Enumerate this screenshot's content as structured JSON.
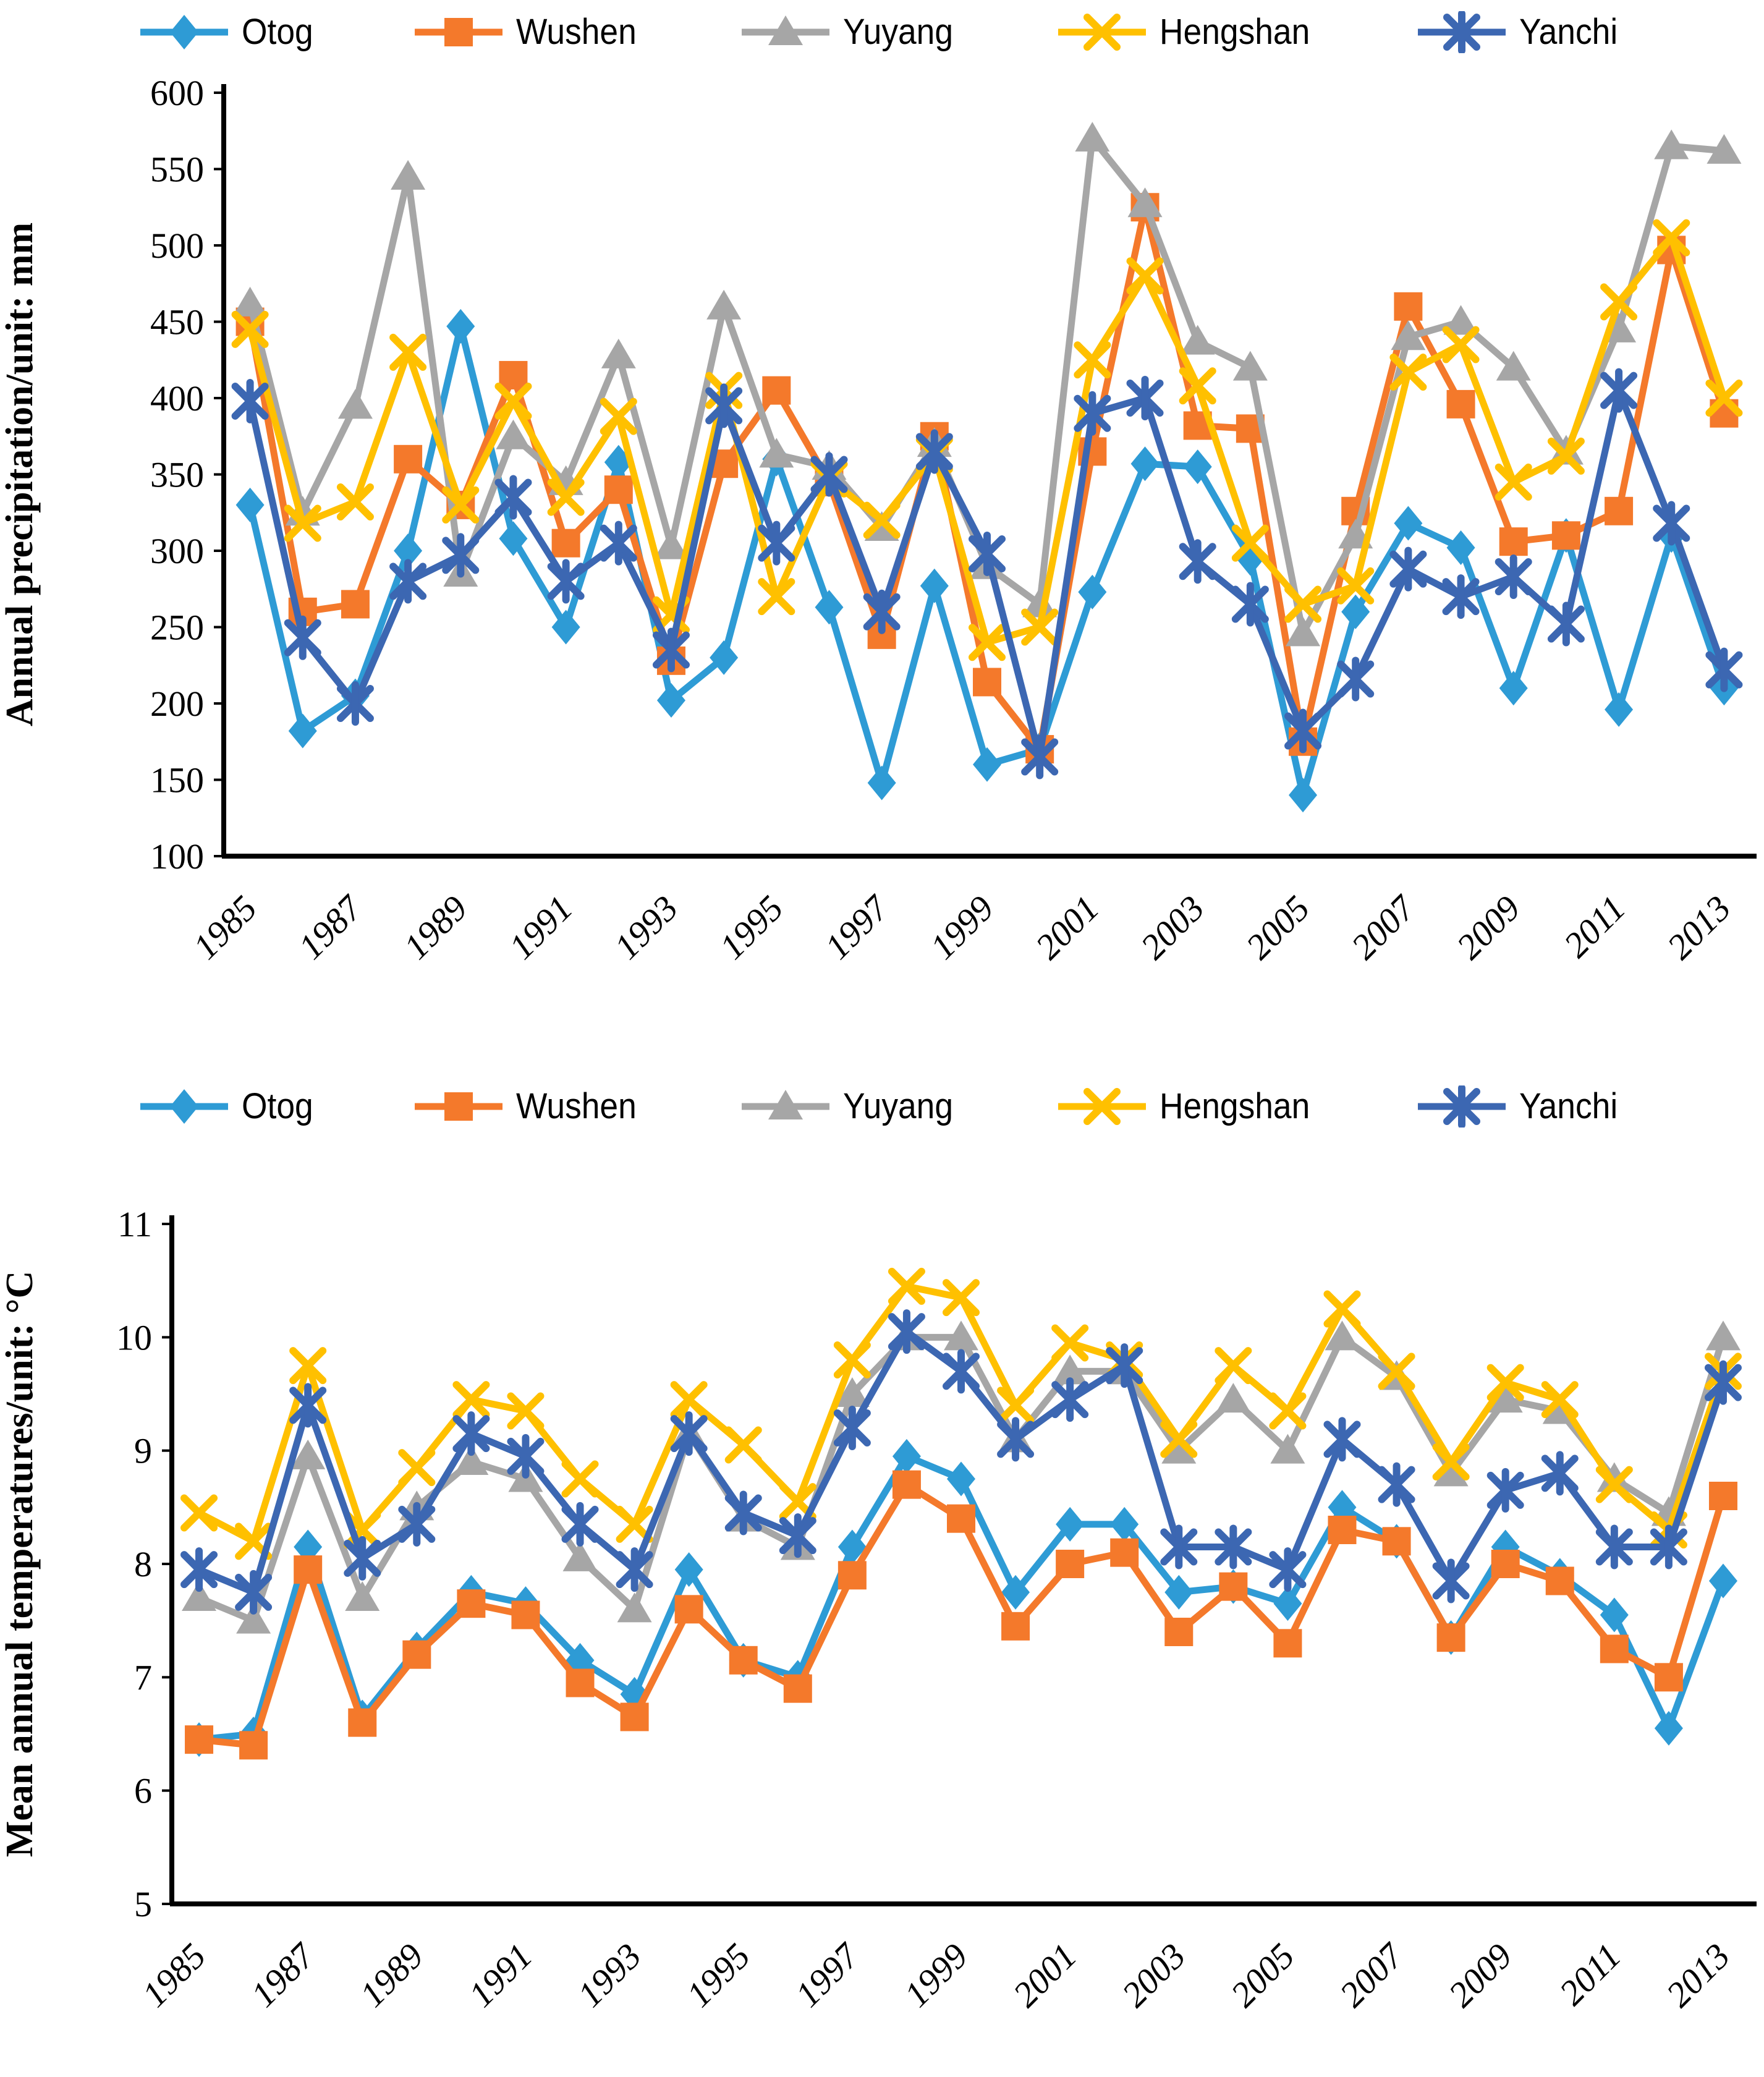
{
  "page": {
    "background": "#ffffff",
    "axis_color": "#000000"
  },
  "chart_data": [
    {
      "type": "line",
      "title": "",
      "ylabel": "Annual precipitation/unit: mm",
      "xlabel": "",
      "ylim": [
        100,
        600
      ],
      "ytick_step": 50,
      "xtick_every": 2,
      "grid": false,
      "legend_position": "top",
      "x": [
        1985,
        1986,
        1987,
        1988,
        1989,
        1990,
        1991,
        1992,
        1993,
        1994,
        1995,
        1996,
        1997,
        1998,
        1999,
        2000,
        2001,
        2002,
        2003,
        2004,
        2005,
        2006,
        2007,
        2008,
        2009,
        2010,
        2011,
        2012,
        2013
      ],
      "series": [
        {
          "name": "Otog",
          "color": "#2E9BD5",
          "marker": "diamond",
          "values": [
            330,
            182,
            205,
            300,
            447,
            308,
            250,
            358,
            202,
            230,
            360,
            263,
            148,
            277,
            160,
            170,
            273,
            357,
            355,
            295,
            140,
            260,
            318,
            302,
            210,
            310,
            196,
            310,
            210
          ]
        },
        {
          "name": "Wushen",
          "color": "#F4792B",
          "marker": "square",
          "values": [
            450,
            260,
            265,
            360,
            330,
            415,
            305,
            340,
            228,
            357,
            405,
            345,
            245,
            375,
            214,
            170,
            365,
            525,
            382,
            380,
            175,
            326,
            460,
            396,
            306,
            310,
            326,
            497,
            390
          ]
        },
        {
          "name": "Yuyang",
          "color": "#A6A6A6",
          "marker": "triangle",
          "values": [
            462,
            325,
            395,
            545,
            285,
            375,
            345,
            428,
            303,
            460,
            363,
            355,
            315,
            370,
            290,
            265,
            570,
            527,
            437,
            420,
            246,
            310,
            440,
            450,
            420,
            365,
            445,
            565,
            562
          ]
        },
        {
          "name": "Hengshan",
          "color": "#FFC000",
          "marker": "x",
          "values": [
            445,
            318,
            332,
            430,
            330,
            398,
            335,
            388,
            258,
            405,
            270,
            347,
            320,
            363,
            240,
            250,
            425,
            480,
            408,
            305,
            265,
            277,
            417,
            435,
            345,
            362,
            463,
            505,
            400
          ]
        },
        {
          "name": "Yanchi",
          "color": "#3C67B2",
          "marker": "asterisk",
          "values": [
            398,
            243,
            200,
            280,
            297,
            335,
            280,
            305,
            235,
            395,
            305,
            350,
            260,
            365,
            298,
            165,
            390,
            400,
            293,
            265,
            182,
            216,
            288,
            270,
            283,
            252,
            405,
            318,
            222
          ]
        }
      ]
    },
    {
      "type": "line",
      "title": "",
      "ylabel": "Mean annual temperatures/unit: °C",
      "xlabel": "",
      "ylim": [
        5,
        11
      ],
      "ytick_step": 1,
      "xtick_every": 2,
      "grid": false,
      "legend_position": "top",
      "x": [
        1985,
        1986,
        1987,
        1988,
        1989,
        1990,
        1991,
        1992,
        1993,
        1994,
        1995,
        1996,
        1997,
        1998,
        1999,
        2000,
        2001,
        2002,
        2003,
        2004,
        2005,
        2006,
        2007,
        2008,
        2009,
        2010,
        2011,
        2012,
        2013
      ],
      "series": [
        {
          "name": "Otog",
          "color": "#2E9BD5",
          "marker": "diamond",
          "values": [
            6.45,
            6.5,
            8.15,
            6.65,
            7.25,
            7.75,
            7.65,
            7.15,
            6.85,
            7.95,
            7.15,
            7.0,
            8.15,
            8.95,
            8.75,
            7.75,
            8.35,
            8.35,
            7.75,
            7.8,
            7.65,
            8.5,
            8.2,
            7.35,
            8.15,
            7.9,
            7.55,
            6.55,
            7.85
          ]
        },
        {
          "name": "Wushen",
          "color": "#F4792B",
          "marker": "square",
          "values": [
            6.45,
            6.4,
            7.95,
            6.6,
            7.2,
            7.65,
            7.55,
            6.95,
            6.65,
            7.6,
            7.15,
            6.9,
            7.9,
            8.7,
            8.4,
            7.45,
            8.0,
            8.1,
            7.4,
            7.8,
            7.3,
            8.3,
            8.2,
            7.35,
            8.0,
            7.85,
            7.25,
            7.0,
            8.6
          ]
        },
        {
          "name": "Yuyang",
          "color": "#A6A6A6",
          "marker": "triangle",
          "values": [
            7.7,
            7.5,
            8.95,
            7.7,
            8.5,
            8.9,
            8.75,
            8.05,
            7.6,
            9.15,
            8.4,
            8.15,
            9.5,
            10.0,
            10.0,
            9.1,
            9.7,
            9.7,
            9.0,
            9.45,
            9.0,
            10.0,
            9.65,
            8.8,
            9.45,
            9.35,
            8.75,
            8.45,
            10.0
          ]
        },
        {
          "name": "Hengshan",
          "color": "#FFC000",
          "marker": "x",
          "values": [
            8.45,
            8.2,
            9.75,
            8.3,
            8.85,
            9.45,
            9.35,
            8.75,
            8.35,
            9.45,
            9.05,
            8.55,
            9.8,
            10.45,
            10.35,
            9.4,
            9.95,
            9.8,
            9.1,
            9.75,
            9.35,
            10.25,
            9.7,
            8.9,
            9.6,
            9.45,
            8.7,
            8.3,
            9.7
          ]
        },
        {
          "name": "Yanchi",
          "color": "#3C67B2",
          "marker": "asterisk",
          "values": [
            7.95,
            7.75,
            9.4,
            8.05,
            8.35,
            9.15,
            8.95,
            8.35,
            7.95,
            9.15,
            8.45,
            8.25,
            9.2,
            10.05,
            9.7,
            9.1,
            9.45,
            9.75,
            8.15,
            8.15,
            7.95,
            9.1,
            8.7,
            7.85,
            8.65,
            8.8,
            8.15,
            8.15,
            9.6
          ]
        }
      ]
    }
  ]
}
